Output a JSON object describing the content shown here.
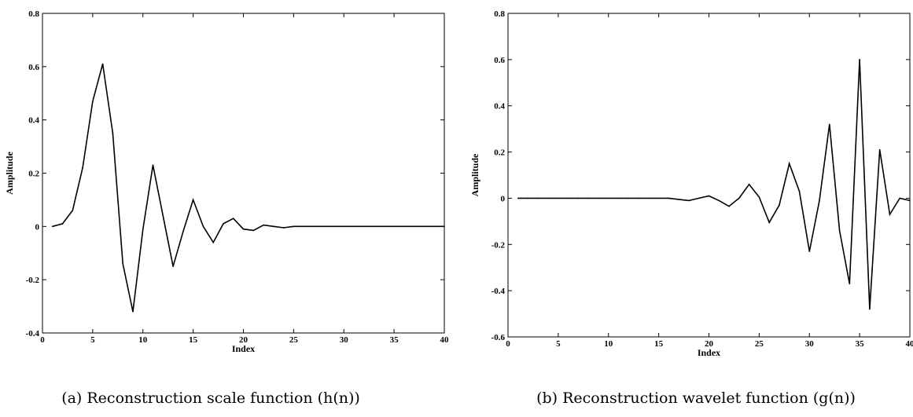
{
  "chart_data": [
    {
      "type": "line",
      "caption": "(a) Reconstruction scale function (h(n))",
      "xlabel": "Index",
      "ylabel": "Amplitude",
      "xlim": [
        0,
        40
      ],
      "ylim": [
        -0.4,
        0.8
      ],
      "x_ticks": [
        "0",
        "5",
        "10",
        "15",
        "20",
        "25",
        "30",
        "35",
        "40"
      ],
      "y_ticks": [
        "-0.4",
        "-0.2",
        "0",
        "0.2",
        "0.4",
        "0.6",
        "0.8"
      ],
      "grid": false,
      "x": [
        1,
        2,
        3,
        4,
        5,
        6,
        7,
        8,
        9,
        10,
        11,
        12,
        13,
        14,
        15,
        16,
        17,
        18,
        19,
        20,
        21,
        22,
        23,
        24,
        25,
        26,
        27,
        28,
        29,
        30,
        31,
        32,
        33,
        34,
        35,
        36,
        37,
        38,
        39,
        40
      ],
      "y": [
        0.0,
        0.01,
        0.06,
        0.22,
        0.47,
        0.61,
        0.35,
        -0.14,
        -0.32,
        -0.01,
        0.23,
        0.04,
        -0.15,
        -0.02,
        0.1,
        0.0,
        -0.06,
        0.01,
        0.03,
        -0.01,
        -0.015,
        0.005,
        0.0,
        -0.005,
        0.0,
        0.0,
        0.0,
        0.0,
        0.0,
        0.0,
        0.0,
        0.0,
        0.0,
        0.0,
        0.0,
        0.0,
        0.0,
        0.0,
        0.0,
        0.0
      ]
    },
    {
      "type": "line",
      "caption": "(b) Reconstruction wavelet function (g(n))",
      "xlabel": "Index",
      "ylabel": "Amplitude",
      "xlim": [
        0,
        40
      ],
      "ylim": [
        -0.6,
        0.8
      ],
      "x_ticks": [
        "0",
        "5",
        "10",
        "15",
        "20",
        "25",
        "30",
        "35",
        "40"
      ],
      "y_ticks": [
        "-0.6",
        "-0.4",
        "-0.2",
        "0",
        "0.2",
        "0.4",
        "0.6",
        "0.8"
      ],
      "grid": false,
      "x": [
        1,
        2,
        3,
        4,
        5,
        6,
        7,
        8,
        9,
        10,
        11,
        12,
        13,
        14,
        15,
        16,
        17,
        18,
        19,
        20,
        21,
        22,
        23,
        24,
        25,
        26,
        27,
        28,
        29,
        30,
        31,
        32,
        33,
        34,
        35,
        36,
        37,
        38,
        39,
        40
      ],
      "y": [
        0.0,
        0.0,
        0.0,
        0.0,
        0.0,
        0.0,
        0.0,
        0.0,
        0.0,
        0.0,
        0.0,
        0.0,
        0.0,
        0.0,
        0.0,
        0.0,
        -0.005,
        -0.01,
        0.0,
        0.01,
        -0.01,
        -0.035,
        0.0,
        0.06,
        0.005,
        -0.105,
        -0.03,
        0.15,
        0.03,
        -0.23,
        -0.01,
        0.32,
        -0.14,
        -0.37,
        0.6,
        -0.48,
        0.21,
        -0.07,
        0.0,
        -0.01
      ]
    }
  ]
}
